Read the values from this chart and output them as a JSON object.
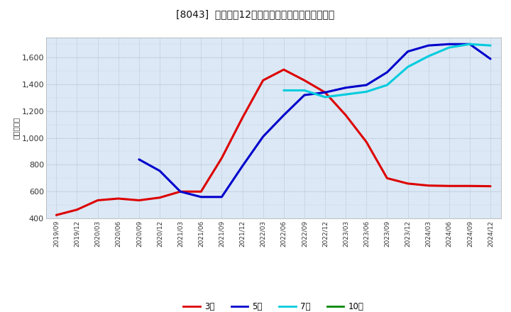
{
  "title": "[8043]  経常利益12か月移動合計の標準偏差の推移",
  "ylabel": "（百万円）",
  "background_color": "#ffffff",
  "plot_bg_color": "#dce8f5",
  "ylim": [
    400,
    1750
  ],
  "yticks": [
    400,
    600,
    800,
    1000,
    1200,
    1400,
    1600
  ],
  "x_labels": [
    "2019/09",
    "2019/12",
    "2020/03",
    "2020/06",
    "2020/09",
    "2020/12",
    "2021/03",
    "2021/06",
    "2021/09",
    "2021/12",
    "2022/03",
    "2022/06",
    "2022/09",
    "2022/12",
    "2023/03",
    "2023/06",
    "2023/09",
    "2023/12",
    "2024/03",
    "2024/06",
    "2024/09",
    "2024/12"
  ],
  "series": {
    "3year": {
      "color": "#dd0000",
      "label": "3年",
      "values": [
        425,
        465,
        535,
        548,
        535,
        555,
        600,
        600,
        850,
        1150,
        1430,
        1510,
        1430,
        1340,
        1170,
        970,
        700,
        660,
        645,
        642,
        642,
        640
      ]
    },
    "5year": {
      "color": "#0000cc",
      "label": "5年",
      "values": [
        null,
        null,
        null,
        null,
        840,
        755,
        600,
        560,
        560,
        790,
        1010,
        1170,
        1320,
        1340,
        1375,
        1395,
        1490,
        1645,
        1690,
        1700,
        1700,
        1590
      ]
    },
    "7year": {
      "color": "#00ccdd",
      "label": "7年",
      "values": [
        null,
        null,
        null,
        null,
        null,
        null,
        null,
        null,
        null,
        null,
        null,
        1355,
        1355,
        1305,
        1325,
        1345,
        1395,
        1530,
        1610,
        1675,
        1700,
        1690
      ]
    },
    "10year": {
      "color": "#008800",
      "label": "10年",
      "values": [
        null,
        null,
        null,
        null,
        null,
        null,
        null,
        null,
        null,
        null,
        null,
        null,
        null,
        null,
        null,
        null,
        null,
        null,
        null,
        null,
        null,
        null
      ]
    }
  },
  "legend_items": [
    {
      "label": "3年",
      "color": "#dd0000"
    },
    {
      "label": "5年",
      "color": "#0000cc"
    },
    {
      "label": "7年",
      "color": "#00ccdd"
    },
    {
      "label": "10年",
      "color": "#008800"
    }
  ]
}
